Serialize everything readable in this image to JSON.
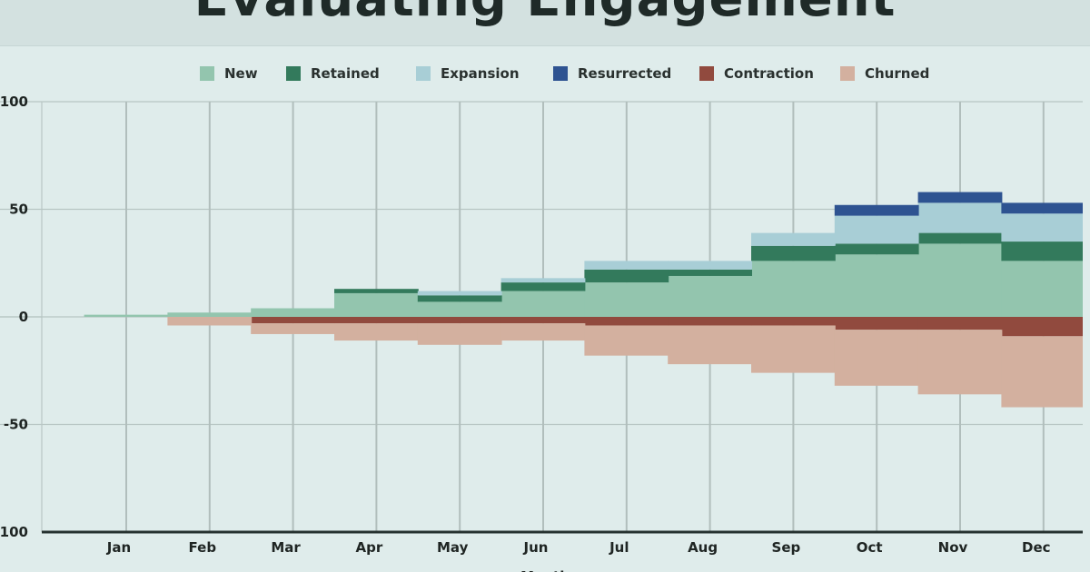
{
  "title": "Evaluating Engagement",
  "chart_data": {
    "type": "area",
    "step": true,
    "title": "Evaluating Engagement",
    "xlabel": "Month",
    "ylabel": "",
    "ylim": [
      -100,
      100
    ],
    "yticks": [
      100,
      50,
      0,
      -50,
      -100
    ],
    "grid": true,
    "legend_position": "top",
    "categories": [
      "Jan",
      "Feb",
      "Mar",
      "Apr",
      "May",
      "Jun",
      "Jul",
      "Aug",
      "Sep",
      "Oct",
      "Nov",
      "Dec"
    ],
    "series": [
      {
        "name": "New",
        "color": "#93c5ae",
        "values": [
          1,
          2,
          4,
          11,
          7,
          12,
          16,
          19,
          26,
          29,
          34,
          26
        ]
      },
      {
        "name": "Retained",
        "color": "#337a5c",
        "values": [
          0,
          0,
          0,
          2,
          3,
          4,
          6,
          3,
          7,
          5,
          5,
          9
        ]
      },
      {
        "name": "Expansion",
        "color": "#a8ced6",
        "values": [
          0,
          0,
          0,
          0,
          2,
          2,
          4,
          4,
          6,
          13,
          14,
          13
        ]
      },
      {
        "name": "Resurrected",
        "color": "#2e5391",
        "values": [
          0,
          0,
          0,
          0,
          0,
          0,
          0,
          0,
          0,
          5,
          5,
          5
        ]
      },
      {
        "name": "Contraction",
        "color": "#914a3e",
        "values": [
          0,
          0,
          -3,
          -3,
          -3,
          -3,
          -4,
          -4,
          -4,
          -6,
          -6,
          -9
        ]
      },
      {
        "name": "Churned",
        "color": "#d3b09f",
        "values": [
          0,
          -4,
          -5,
          -8,
          -10,
          -8,
          -14,
          -18,
          -22,
          -26,
          -30,
          -33
        ]
      }
    ]
  }
}
